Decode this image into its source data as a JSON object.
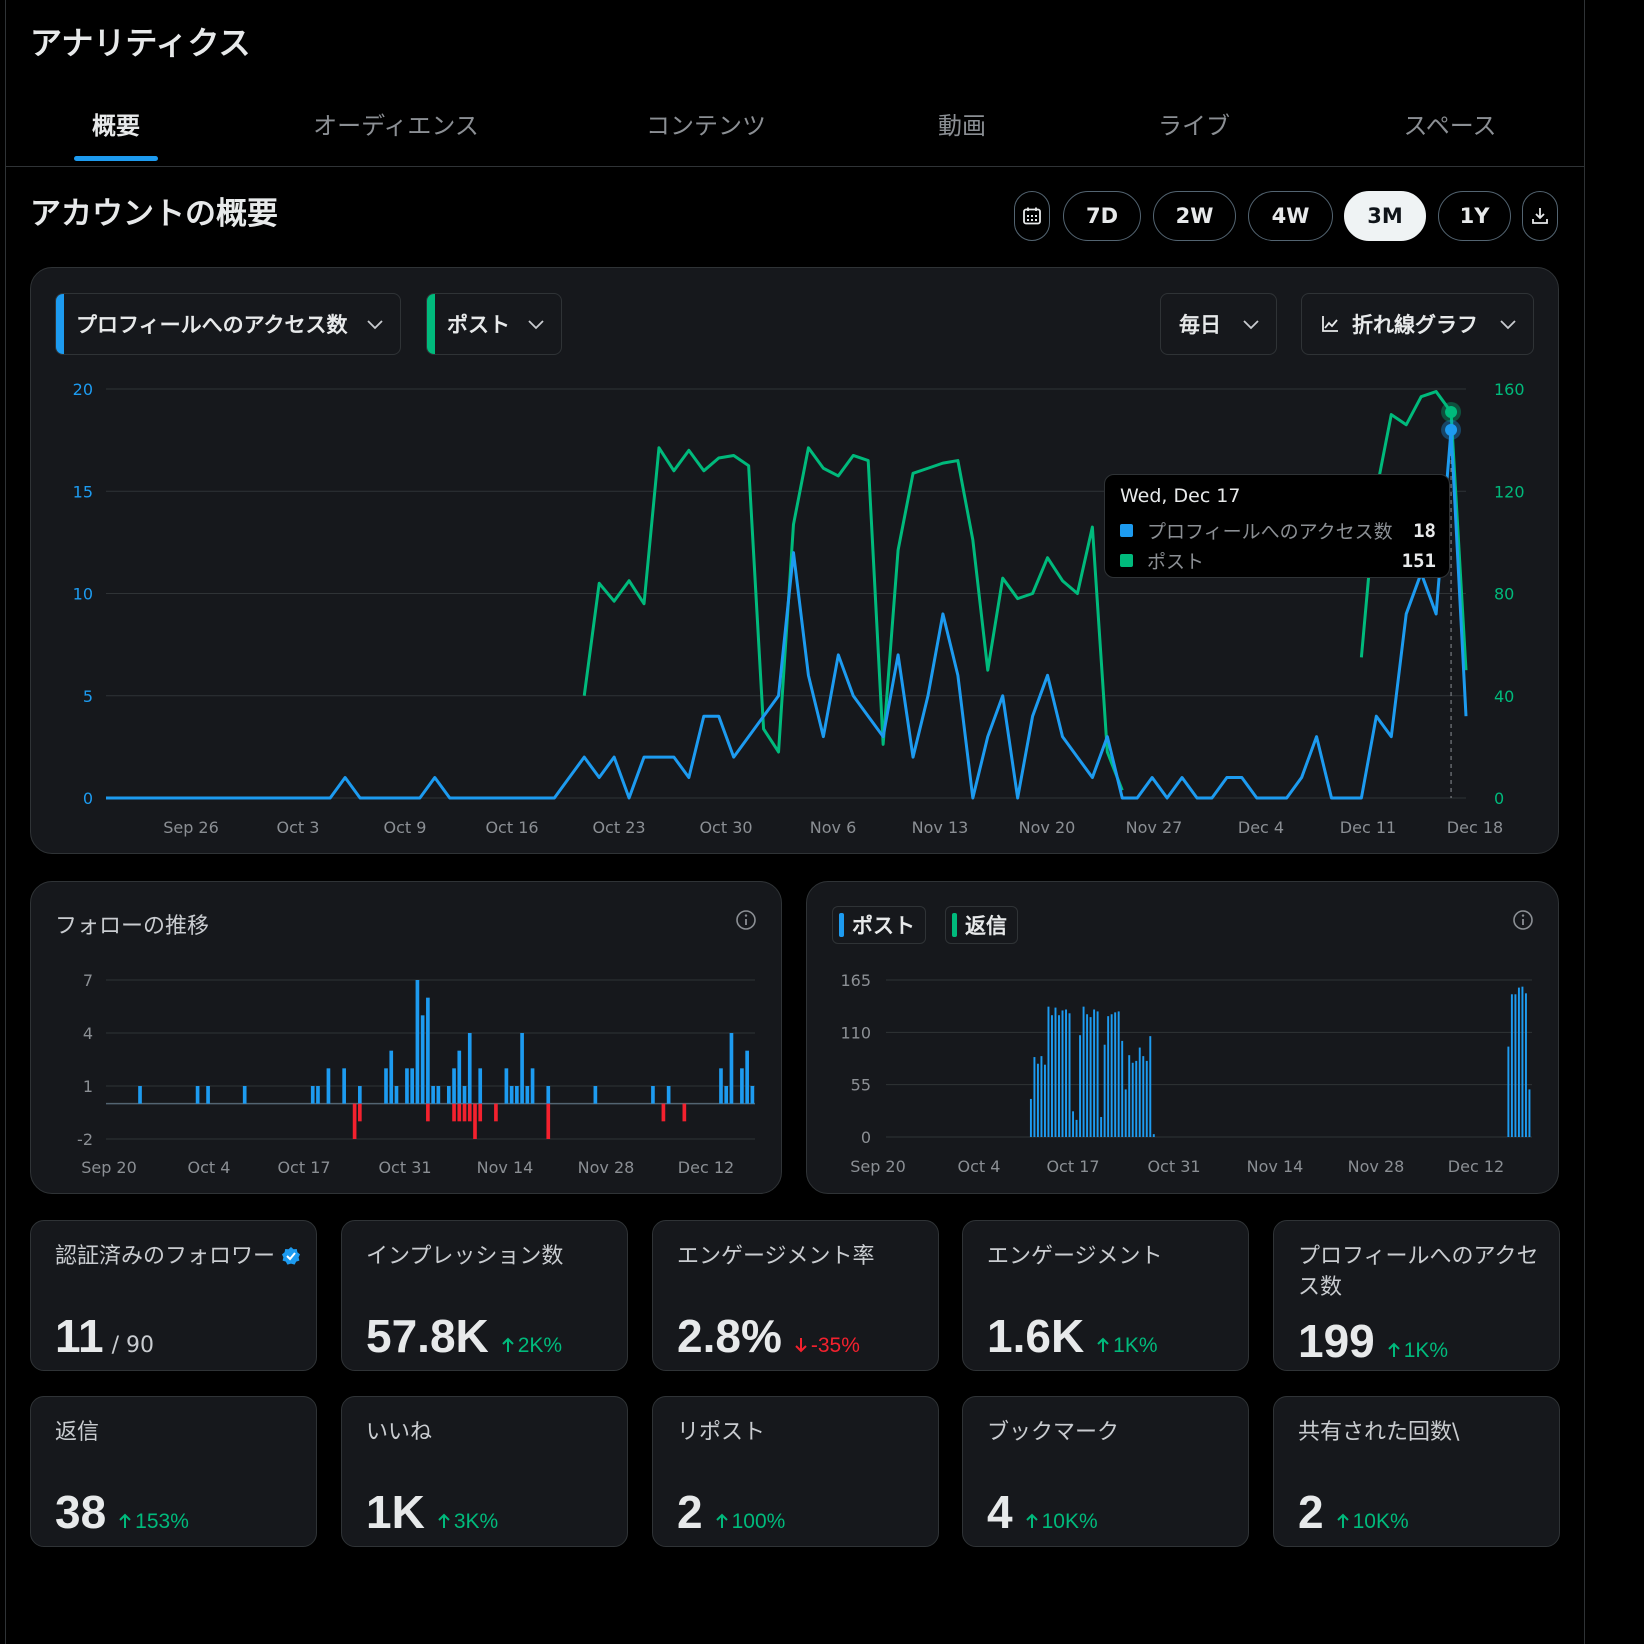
{
  "header": {
    "title": "アナリティクス"
  },
  "tabs": [
    {
      "label": "概要",
      "active": true
    },
    {
      "label": "オーディエンス"
    },
    {
      "label": "コンテンツ"
    },
    {
      "label": "動画"
    },
    {
      "label": "ライブ"
    },
    {
      "label": "スペース"
    }
  ],
  "overview": {
    "title": "アカウントの概要",
    "ranges": [
      "7D",
      "2W",
      "4W",
      "3M",
      "1Y"
    ],
    "active_range": "3M",
    "calendar_icon": "calendar-icon",
    "download_icon": "download-icon"
  },
  "main_chart": {
    "metric1": "プロフィールへのアクセス数",
    "metric2": "ポスト",
    "interval": "毎日",
    "chart_type": "折れ線グラフ",
    "colors": {
      "metric1": "#1d9bf0",
      "metric2": "#00ba7c"
    },
    "tooltip": {
      "date": "Wed, Dec 17",
      "rows": [
        {
          "label": "プロフィールへのアクセス数",
          "value": "18"
        },
        {
          "label": "ポスト",
          "value": "151"
        }
      ]
    }
  },
  "followers_chart": {
    "title": "フォローの推移"
  },
  "posts_chart": {
    "legend": [
      "ポスト",
      "返信"
    ]
  },
  "stats": [
    {
      "label": "認証済みのフォロワー",
      "value": "11",
      "suffix": "/ 90",
      "verified": true
    },
    {
      "label": "インプレッション数",
      "value": "57.8K",
      "change": "2K%",
      "dir": "up"
    },
    {
      "label": "エンゲージメント率",
      "value": "2.8%",
      "change": "-35%",
      "dir": "down"
    },
    {
      "label": "エンゲージメント",
      "value": "1.6K",
      "change": "1K%",
      "dir": "up"
    },
    {
      "label": "プロフィールへのアクセス数",
      "value": "199",
      "change": "1K%",
      "dir": "up"
    },
    {
      "label": "返信",
      "value": "38",
      "change": "153%",
      "dir": "up"
    },
    {
      "label": "いいね",
      "value": "1K",
      "change": "3K%",
      "dir": "up"
    },
    {
      "label": "リポスト",
      "value": "2",
      "change": "100%",
      "dir": "up"
    },
    {
      "label": "ブックマーク",
      "value": "4",
      "change": "10K%",
      "dir": "up"
    },
    {
      "label": "共有された回数\\",
      "value": "2",
      "change": "10K%",
      "dir": "up"
    }
  ],
  "chart_data": [
    {
      "type": "line",
      "x_start": "Sep 20",
      "x_tick_labels": [
        "Sep 26",
        "Oct 3",
        "Oct 9",
        "Oct 16",
        "Oct 23",
        "Oct 30",
        "Nov 6",
        "Nov 13",
        "Nov 20",
        "Nov 27",
        "Dec 4",
        "Dec 11",
        "Dec 18"
      ],
      "y_left_ticks": [
        0,
        5,
        10,
        15,
        20
      ],
      "y_right_ticks": [
        0,
        40,
        80,
        120,
        160
      ],
      "ylim_left": [
        0,
        20
      ],
      "ylim_right": [
        0,
        160
      ],
      "grid": true,
      "series": [
        {
          "name": "プロフィールへのアクセス数",
          "axis": "left",
          "color": "#1d9bf0",
          "values": [
            0,
            0,
            0,
            0,
            0,
            0,
            0,
            0,
            0,
            0,
            0,
            0,
            0,
            0,
            0,
            0,
            1,
            0,
            0,
            0,
            0,
            0,
            1,
            0,
            0,
            0,
            0,
            0,
            0,
            0,
            0,
            1,
            2,
            1,
            2,
            0,
            2,
            2,
            2,
            1,
            4,
            4,
            2,
            3,
            4,
            5,
            12,
            6,
            3,
            7,
            5,
            4,
            3,
            7,
            2,
            5,
            9,
            6,
            0,
            3,
            5,
            0,
            4,
            6,
            3,
            2,
            1,
            3,
            0,
            0,
            1,
            0,
            1,
            0,
            0,
            1,
            1,
            0,
            0,
            0,
            1,
            3,
            0,
            0,
            0,
            4,
            3,
            9,
            11,
            9,
            18,
            4
          ]
        },
        {
          "name": "ポスト",
          "axis": "right",
          "color": "#00ba7c",
          "values": [
            null,
            null,
            null,
            null,
            null,
            null,
            null,
            null,
            null,
            null,
            null,
            null,
            null,
            null,
            null,
            null,
            null,
            null,
            null,
            null,
            null,
            null,
            null,
            null,
            null,
            null,
            null,
            null,
            null,
            null,
            null,
            null,
            40,
            84,
            77,
            85,
            76,
            137,
            128,
            136,
            128,
            133,
            134,
            130,
            27,
            18,
            107,
            137,
            129,
            126,
            134,
            132,
            21,
            97,
            127,
            129,
            131,
            132,
            101,
            50,
            86,
            78,
            80,
            94,
            85,
            80,
            106,
            18,
            3,
            null,
            null,
            null,
            null,
            null,
            null,
            null,
            null,
            null,
            null,
            null,
            null,
            null,
            null,
            null,
            null,
            null,
            null,
            null,
            null,
            null,
            null,
            null,
            null,
            null,
            null,
            null,
            null,
            null,
            null,
            null,
            null,
            null,
            null,
            null,
            null,
            null,
            null,
            null,
            null,
            null,
            null,
            null,
            null
          ]
        },
        {
          "name": "ポスト (Dec)",
          "axis": "right",
          "color": "#00ba7c",
          "values_tail": {
            "start_index": 84,
            "values": [
              55,
              120,
              150,
              146,
              157,
              159,
              151,
              50
            ]
          }
        }
      ]
    },
    {
      "type": "bar",
      "title": "フォローの推移",
      "x_tick_labels": [
        "Sep 20",
        "Oct 4",
        "Oct 17",
        "Oct 31",
        "Nov 14",
        "Nov 28",
        "Dec 12"
      ],
      "y_ticks": [
        -2,
        1,
        4,
        7
      ],
      "ylim": [
        -2,
        7
      ],
      "series": [
        {
          "name": "gain",
          "color": "#1d9bf0",
          "values": [
            0,
            0,
            0,
            0,
            0,
            0,
            1,
            0,
            0,
            0,
            0,
            0,
            0,
            0,
            0,
            0,
            0,
            1,
            0,
            1,
            0,
            0,
            0,
            0,
            0,
            0,
            1,
            0,
            0,
            0,
            0,
            0,
            0,
            0,
            0,
            0,
            0,
            0,
            0,
            1,
            1,
            0,
            2,
            0,
            0,
            2,
            0,
            0,
            1,
            0,
            0,
            0,
            0,
            2,
            3,
            1,
            0,
            2,
            2,
            7,
            5,
            6,
            1,
            1,
            0,
            1,
            2,
            3,
            1,
            4,
            0,
            2,
            0,
            0,
            0,
            0,
            2,
            1,
            1,
            4,
            1,
            2,
            0,
            0,
            1,
            0,
            0,
            0,
            0,
            0,
            0,
            0,
            0,
            1,
            0,
            0,
            0,
            0,
            0,
            0,
            0,
            0,
            0,
            0,
            1,
            0,
            0,
            1,
            0,
            0,
            0,
            0,
            0,
            0,
            0,
            0,
            0,
            2,
            1,
            4,
            0,
            2,
            3,
            1
          ]
        },
        {
          "name": "loss",
          "color": "#f4212e",
          "values": [
            0,
            0,
            0,
            0,
            0,
            0,
            0,
            0,
            0,
            0,
            0,
            0,
            0,
            0,
            0,
            0,
            0,
            0,
            0,
            0,
            0,
            0,
            0,
            0,
            0,
            0,
            0,
            0,
            0,
            0,
            0,
            0,
            0,
            0,
            0,
            0,
            0,
            0,
            0,
            0,
            0,
            0,
            0,
            0,
            0,
            0,
            0,
            -2,
            -1,
            0,
            0,
            0,
            0,
            0,
            0,
            0,
            0,
            0,
            0,
            0,
            0,
            -1,
            0,
            0,
            0,
            0,
            -1,
            -1,
            -1,
            -1,
            -2,
            -1,
            0,
            0,
            -1,
            0,
            0,
            0,
            0,
            0,
            0,
            0,
            0,
            0,
            -2,
            0,
            0,
            0,
            0,
            0,
            0,
            0,
            0,
            0,
            0,
            0,
            0,
            0,
            0,
            0,
            0,
            0,
            0,
            0,
            0,
            0,
            -1,
            0,
            0,
            0,
            -1,
            0,
            0,
            0,
            0,
            0,
            0,
            0,
            0,
            0,
            0,
            0,
            0,
            0
          ]
        }
      ]
    },
    {
      "type": "bar",
      "x_tick_labels": [
        "Sep 20",
        "Oct 4",
        "Oct 17",
        "Oct 31",
        "Nov 14",
        "Nov 28",
        "Dec 12"
      ],
      "y_ticks": [
        0,
        55,
        110,
        165
      ],
      "ylim": [
        0,
        165
      ],
      "legend": [
        "ポスト",
        "返信"
      ],
      "series": [
        {
          "name": "ポスト",
          "color": "#1d9bf0",
          "values": [
            0,
            0,
            0,
            0,
            0,
            0,
            0,
            0,
            0,
            0,
            0,
            0,
            0,
            0,
            0,
            0,
            0,
            0,
            0,
            0,
            0,
            0,
            0,
            0,
            0,
            0,
            0,
            0,
            0,
            0,
            0,
            0,
            0,
            0,
            0,
            0,
            0,
            0,
            0,
            0,
            0,
            40,
            84,
            77,
            85,
            76,
            137,
            128,
            136,
            128,
            133,
            134,
            130,
            27,
            18,
            107,
            137,
            129,
            126,
            134,
            132,
            21,
            97,
            127,
            129,
            131,
            132,
            101,
            50,
            86,
            78,
            80,
            94,
            85,
            80,
            106,
            3,
            0,
            0,
            0,
            0,
            0,
            0,
            0,
            0,
            0,
            0,
            0,
            0,
            0,
            0,
            0,
            0,
            0,
            0,
            0,
            0,
            0,
            0,
            0,
            0,
            0,
            0,
            0,
            0,
            0,
            0,
            0,
            0,
            0,
            0,
            0,
            0,
            0,
            0,
            0,
            0,
            0,
            0,
            0,
            0,
            0,
            0,
            0,
            0,
            0,
            0,
            0,
            0,
            0,
            0,
            0,
            0,
            0,
            0,
            0,
            0,
            0,
            0,
            0,
            0,
            0,
            0,
            0,
            0,
            0,
            0,
            0,
            0,
            0,
            0,
            0,
            0,
            0,
            0,
            0,
            0,
            0,
            0,
            0,
            0,
            0,
            0,
            0,
            0,
            0,
            0,
            0,
            0,
            0,
            0,
            0,
            0,
            0,
            0,
            0,
            0,
            95,
            150,
            150,
            157,
            158,
            151,
            50
          ]
        },
        {
          "name": "返信",
          "color": "#00ba7c",
          "values": []
        }
      ]
    }
  ]
}
